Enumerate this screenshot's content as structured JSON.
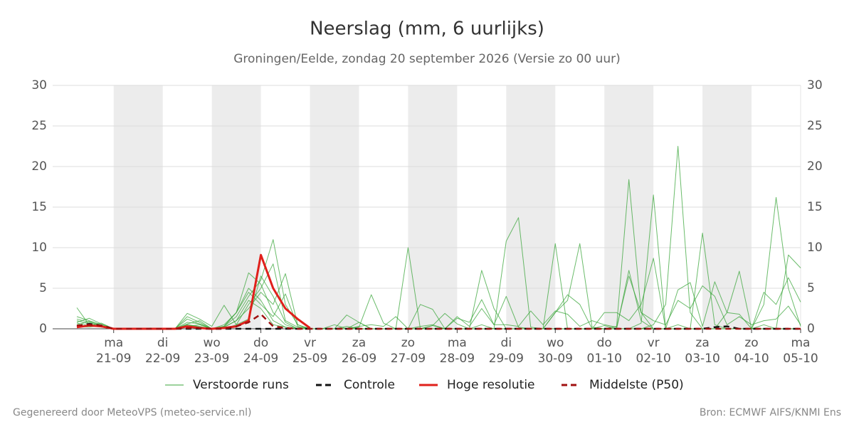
{
  "chart_data": {
    "type": "line",
    "title": "Neerslag (mm, 6 uurlijks)",
    "subtitle": "Groningen/Eelde, zondag 20 september 2026 (Versie zo 00 uur)",
    "categories": [
      null,
      null,
      null,
      "21-09",
      null,
      null,
      null,
      "22-09",
      null,
      null,
      null,
      "23-09",
      null,
      null,
      null,
      "24-09",
      null,
      null,
      null,
      "25-09",
      null,
      null,
      null,
      "26-09",
      null,
      null,
      null,
      "27-09",
      null,
      null,
      null,
      "28-09",
      null,
      null,
      null,
      "29-09",
      null,
      null,
      null,
      "30-09",
      null,
      null,
      null,
      "01-10",
      null,
      null,
      null,
      "02-10",
      null,
      null,
      null,
      "03-10",
      null,
      null,
      null,
      "04-10",
      null,
      null,
      null,
      "05-10"
    ],
    "weekdays": [
      null,
      null,
      null,
      "ma",
      null,
      null,
      null,
      "di",
      null,
      null,
      null,
      "wo",
      null,
      null,
      null,
      "do",
      null,
      null,
      null,
      "vr",
      null,
      null,
      null,
      "za",
      null,
      null,
      null,
      "zo",
      null,
      null,
      null,
      "ma",
      null,
      null,
      null,
      "di",
      null,
      null,
      null,
      "wo",
      null,
      null,
      null,
      "do",
      null,
      null,
      null,
      "vr",
      null,
      null,
      null,
      "za",
      null,
      null,
      null,
      "zo",
      null,
      null,
      null,
      "ma"
    ],
    "ylim": [
      0,
      30
    ],
    "yticks": [
      0,
      5,
      10,
      15,
      20,
      25,
      30
    ],
    "grid": true,
    "series": [
      {
        "name": "Verstoorde runs",
        "color": "#3aa53a",
        "members": [
          [
            1.2,
            0.8,
            0.3,
            0,
            0,
            0,
            0,
            0,
            0,
            0.5,
            0.2,
            0,
            0.3,
            1.5,
            4,
            6,
            11,
            3,
            0.5,
            0,
            0,
            0,
            0.3,
            0,
            0,
            0,
            0,
            0,
            0,
            0.4,
            0,
            0,
            0,
            0.5,
            0,
            0,
            0,
            0,
            0,
            0,
            0,
            0,
            0,
            0.4,
            0,
            0,
            0,
            0.5,
            3,
            22.5,
            2,
            0,
            0,
            0,
            0,
            0,
            0,
            0,
            0,
            0
          ],
          [
            0.8,
            1.3,
            0.6,
            0,
            0,
            0,
            0,
            0,
            0,
            1.9,
            1.2,
            0.3,
            2.9,
            0.5,
            3,
            5,
            8,
            1,
            0.2,
            0,
            0,
            0,
            0,
            0.8,
            0,
            0,
            0,
            0,
            0,
            0,
            0,
            0,
            0,
            0,
            0,
            10.8,
            13.7,
            0.2,
            0,
            0,
            0,
            0,
            0,
            0,
            0.3,
            18.4,
            2,
            0,
            0,
            0,
            0,
            0,
            0,
            0,
            0,
            0,
            0.5,
            0,
            0,
            0
          ],
          [
            2.6,
            0.5,
            0.2,
            0,
            0,
            0,
            0.1,
            0,
            0,
            1.5,
            0.8,
            0,
            0.3,
            2,
            6.9,
            5.5,
            2,
            0.5,
            0,
            0,
            0,
            0,
            1.7,
            0.8,
            0,
            0,
            0,
            10,
            0,
            0,
            0,
            0,
            0,
            0,
            0,
            0,
            0,
            0,
            0,
            0,
            0,
            0,
            0,
            0,
            0,
            0,
            0.7,
            16.5,
            0,
            0,
            0,
            0,
            0,
            0,
            0,
            0,
            0,
            0,
            0,
            0
          ],
          [
            0.5,
            0.9,
            0.4,
            0,
            0,
            0,
            0,
            0,
            0,
            0.5,
            0.3,
            0,
            0.2,
            1,
            2.5,
            4.5,
            3,
            6.8,
            0.5,
            0,
            0,
            0,
            0,
            0,
            0,
            0,
            0,
            0,
            3,
            2.4,
            0,
            0,
            0,
            0,
            0,
            0,
            0,
            0,
            0,
            10.5,
            0,
            0,
            0,
            0,
            0,
            0,
            0,
            0,
            0,
            0,
            0,
            0,
            0,
            0,
            0,
            0,
            3,
            16.2,
            5,
            0.3
          ],
          [
            1,
            0.6,
            0.3,
            0,
            0,
            0,
            0,
            0,
            0,
            0.8,
            0.6,
            0,
            0.5,
            2,
            5,
            3.5,
            1,
            0.2,
            0,
            0,
            0,
            0,
            0,
            0.2,
            4.2,
            0.7,
            0,
            0,
            0,
            0,
            0,
            0,
            0,
            0,
            0,
            0,
            0,
            0,
            0,
            2,
            3.5,
            10.5,
            0.2,
            0,
            0,
            0,
            0,
            0,
            0,
            0.5,
            0,
            11.8,
            0.5,
            0,
            0,
            0,
            0,
            0,
            0,
            0
          ],
          [
            0.3,
            0.2,
            0.4,
            0,
            0,
            0,
            0,
            0,
            0,
            0.3,
            0.5,
            0,
            0,
            0.5,
            1.2,
            6.5,
            4,
            0.8,
            0,
            0,
            0,
            0,
            0,
            0,
            0,
            0,
            0,
            0,
            0,
            0.4,
            1.9,
            0.6,
            0,
            7.2,
            2.5,
            0,
            0,
            0,
            0,
            0,
            0,
            0,
            0,
            0,
            0,
            7.2,
            1,
            0,
            0,
            0,
            0,
            0,
            0,
            2,
            7.1,
            0,
            0,
            0,
            9.1,
            7.5
          ],
          [
            0.7,
            0.4,
            0.7,
            0,
            0,
            0,
            0,
            0,
            0,
            1.2,
            0.6,
            0,
            0.3,
            2,
            4.5,
            3,
            1.5,
            4.3,
            0.3,
            0,
            0,
            0,
            0,
            0,
            0,
            0,
            0,
            0,
            0,
            0,
            0,
            1.5,
            0.3,
            2.5,
            0.5,
            4,
            0.2,
            0,
            0,
            2,
            4.2,
            3,
            0,
            2,
            2,
            1,
            3,
            8.7,
            0,
            4.8,
            5.7,
            0.3,
            5.8,
            2,
            1.8,
            0,
            4.5,
            3,
            6.3,
            3.3
          ],
          [
            1.5,
            1,
            0.5,
            0,
            0,
            0,
            0,
            0,
            0,
            0.6,
            1,
            0,
            0.2,
            1,
            3.5,
            2.5,
            0.5,
            0.2,
            0,
            0,
            0,
            0.5,
            0,
            0.3,
            0.5,
            0.3,
            1.5,
            0,
            0.3,
            0.5,
            0,
            1.3,
            0.8,
            3.6,
            0.5,
            0.5,
            0.3,
            2.2,
            0.5,
            2.2,
            1.8,
            0.3,
            1,
            0.5,
            0.2,
            6.5,
            2,
            1,
            0.5,
            3.5,
            2.5,
            5.3,
            4,
            0.5,
            1.5,
            0.5,
            1,
            1.2,
            2.8,
            0.5
          ]
        ]
      },
      {
        "name": "Controle",
        "color": "#111111",
        "dash": true,
        "values": [
          0.3,
          0.6,
          0.4,
          0,
          0,
          0,
          0,
          0,
          0,
          0,
          0,
          0,
          0,
          0,
          0,
          0,
          0,
          0,
          0,
          0,
          0,
          0,
          0,
          0,
          0,
          0,
          0,
          0,
          0,
          0,
          0,
          0,
          0,
          0,
          0,
          0,
          0,
          0,
          0,
          0,
          0,
          0,
          0,
          0,
          0,
          0,
          0,
          0,
          0,
          0,
          0,
          0,
          0.2,
          0.3,
          0,
          0,
          0,
          0,
          0,
          0
        ]
      },
      {
        "name": "Hoge resolutie",
        "color": "#e0201b",
        "values": [
          0.2,
          0.4,
          0.3,
          0,
          0,
          0,
          0,
          0,
          0,
          0.3,
          0.1,
          0,
          0.1,
          0.3,
          1,
          9.1,
          5,
          2.5,
          1.2,
          0.1,
          null,
          null,
          null,
          null,
          null,
          null,
          null,
          null,
          null,
          null,
          null,
          null,
          null,
          null,
          null,
          null,
          null,
          null,
          null,
          null,
          null,
          null,
          null,
          null,
          null,
          null,
          null,
          null,
          null,
          null,
          null,
          null,
          null,
          null,
          null,
          null,
          null,
          null,
          null,
          null
        ]
      },
      {
        "name": "Middelste (P50)",
        "color": "#a01010",
        "dash": true,
        "values": [
          0.4,
          0.5,
          0.4,
          0,
          0,
          0,
          0,
          0,
          0,
          0.1,
          0.1,
          0,
          0,
          0.3,
          0.8,
          1.8,
          0.3,
          0.1,
          0,
          0,
          0,
          0,
          0,
          0,
          0,
          0,
          0,
          0,
          0,
          0,
          0,
          0,
          0,
          0,
          0,
          0,
          0,
          0,
          0,
          0,
          0,
          0,
          0,
          0,
          0,
          0,
          0,
          0,
          0,
          0,
          0,
          0,
          0,
          0,
          0,
          0,
          0,
          0,
          0,
          0
        ]
      }
    ]
  },
  "footer": {
    "left": "Gegenereerd door MeteoVPS (meteo-service.nl)",
    "right": "Bron: ECMWF AIFS/KNMI Ens"
  }
}
